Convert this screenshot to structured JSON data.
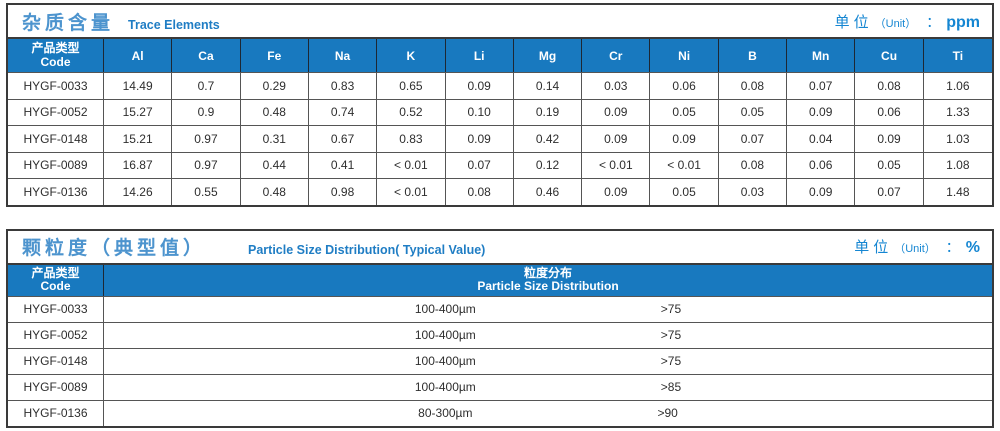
{
  "colors": {
    "header_bg": "#1879BF",
    "title_cjk_blue": "#4D94CE",
    "title_en_blue": "#1F7DC4",
    "unit_blue": "#1586D2",
    "border": "#3A3A3A"
  },
  "table1": {
    "title": "杂质含量",
    "title_en": "Trace Elements",
    "unit_label": "单位",
    "unit_paren": "（Unit）",
    "unit_colon": "：",
    "unit_value": "ppm",
    "code_header_line1": "产品类型",
    "code_header_line2": "Code",
    "columns": [
      "Al",
      "Ca",
      "Fe",
      "Na",
      "K",
      "Li",
      "Mg",
      "Cr",
      "Ni",
      "B",
      "Mn",
      "Cu",
      "Ti"
    ],
    "rows": [
      {
        "code": "HYGF-0033",
        "values": [
          "14.49",
          "0.7",
          "0.29",
          "0.83",
          "0.65",
          "0.09",
          "0.14",
          "0.03",
          "0.06",
          "0.08",
          "0.07",
          "0.08",
          "1.06"
        ]
      },
      {
        "code": "HYGF-0052",
        "values": [
          "15.27",
          "0.9",
          "0.48",
          "0.74",
          "0.52",
          "0.10",
          "0.19",
          "0.09",
          "0.05",
          "0.05",
          "0.09",
          "0.06",
          "1.33"
        ]
      },
      {
        "code": "HYGF-0148",
        "values": [
          "15.21",
          "0.97",
          "0.31",
          "0.67",
          "0.83",
          "0.09",
          "0.42",
          "0.09",
          "0.09",
          "0.07",
          "0.04",
          "0.09",
          "1.03"
        ]
      },
      {
        "code": "HYGF-0089",
        "values": [
          "16.87",
          "0.97",
          "0.44",
          "0.41",
          "< 0.01",
          "0.07",
          "0.12",
          "< 0.01",
          "< 0.01",
          "0.08",
          "0.06",
          "0.05",
          "1.08"
        ]
      },
      {
        "code": "HYGF-0136",
        "values": [
          "14.26",
          "0.55",
          "0.48",
          "0.98",
          "< 0.01",
          "0.08",
          "0.46",
          "0.09",
          "0.05",
          "0.03",
          "0.09",
          "0.07",
          "1.48"
        ]
      }
    ]
  },
  "table2": {
    "title": "颗粒度（典型值）",
    "title_en": "Particle Size Distribution( Typical Value)",
    "unit_label": "单位",
    "unit_paren": "（Unit）",
    "unit_colon": "：",
    "unit_value": "%",
    "code_header_line1": "产品类型",
    "code_header_line2": "Code",
    "dist_header_line1": "粒度分布",
    "dist_header_line2": "Particle Size Distribution",
    "rows": [
      {
        "code": "HYGF-0033",
        "range": "100-400µm",
        "value": ">75"
      },
      {
        "code": "HYGF-0052",
        "range": "100-400µm",
        "value": ">75"
      },
      {
        "code": "HYGF-0148",
        "range": "100-400µm",
        "value": ">75"
      },
      {
        "code": "HYGF-0089",
        "range": "100-400µm",
        "value": ">85"
      },
      {
        "code": "HYGF-0136",
        "range": "80-300µm",
        "value": ">90"
      }
    ]
  }
}
